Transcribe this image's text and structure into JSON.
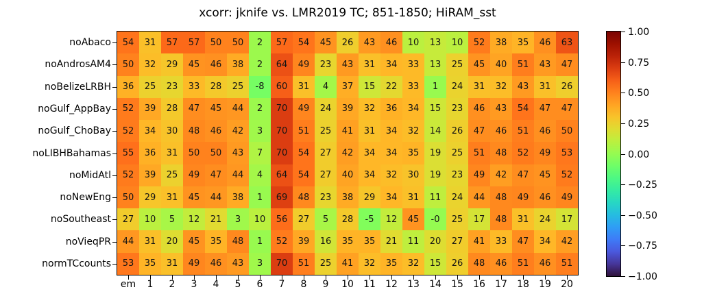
{
  "chart_data": {
    "type": "heatmap",
    "title": "xcorr: jknife vs. LMR2019 TC; 851-1850; HiRAM_sst",
    "x_tick_labels": [
      "em",
      "1",
      "2",
      "3",
      "4",
      "5",
      "6",
      "7",
      "8",
      "9",
      "10",
      "11",
      "12",
      "13",
      "14",
      "15",
      "16",
      "17",
      "18",
      "19",
      "20"
    ],
    "y_tick_labels": [
      "noAbaco",
      "noAndrosAM4",
      "noBelizeLRBH",
      "noGulf_AppBay",
      "noGulf_ChoBay",
      "noLIBHBahamas",
      "noMidAtl",
      "noNewEng",
      "noSoutheast",
      "noVieqPR",
      "normTCcounts"
    ],
    "cell_labels": [
      [
        "54",
        "31",
        "57",
        "57",
        "50",
        "50",
        "2",
        "57",
        "54",
        "45",
        "26",
        "43",
        "46",
        "10",
        "13",
        "10",
        "52",
        "38",
        "35",
        "46",
        "63"
      ],
      [
        "50",
        "32",
        "29",
        "45",
        "46",
        "38",
        "2",
        "64",
        "49",
        "23",
        "43",
        "31",
        "34",
        "33",
        "13",
        "25",
        "45",
        "40",
        "51",
        "43",
        "47"
      ],
      [
        "36",
        "25",
        "23",
        "33",
        "28",
        "25",
        "-8",
        "60",
        "31",
        "4",
        "37",
        "15",
        "22",
        "33",
        "1",
        "24",
        "31",
        "32",
        "43",
        "31",
        "26"
      ],
      [
        "52",
        "39",
        "28",
        "47",
        "45",
        "44",
        "2",
        "70",
        "49",
        "24",
        "39",
        "32",
        "36",
        "34",
        "15",
        "23",
        "46",
        "43",
        "54",
        "47",
        "47"
      ],
      [
        "52",
        "34",
        "30",
        "48",
        "46",
        "42",
        "3",
        "70",
        "51",
        "25",
        "41",
        "31",
        "34",
        "32",
        "14",
        "26",
        "47",
        "46",
        "51",
        "46",
        "50"
      ],
      [
        "55",
        "36",
        "31",
        "50",
        "50",
        "43",
        "7",
        "70",
        "54",
        "27",
        "42",
        "34",
        "34",
        "35",
        "19",
        "25",
        "51",
        "48",
        "52",
        "49",
        "53"
      ],
      [
        "52",
        "39",
        "25",
        "49",
        "47",
        "44",
        "4",
        "64",
        "54",
        "27",
        "40",
        "34",
        "32",
        "30",
        "19",
        "23",
        "49",
        "42",
        "47",
        "45",
        "52"
      ],
      [
        "50",
        "29",
        "31",
        "45",
        "44",
        "38",
        "1",
        "69",
        "48",
        "23",
        "38",
        "29",
        "34",
        "31",
        "11",
        "24",
        "44",
        "48",
        "49",
        "46",
        "49"
      ],
      [
        "27",
        "10",
        "5",
        "12",
        "21",
        "3",
        "10",
        "56",
        "27",
        "5",
        "28",
        "-5",
        "12",
        "45",
        "-0",
        "25",
        "17",
        "48",
        "31",
        "24",
        "17"
      ],
      [
        "44",
        "31",
        "20",
        "45",
        "35",
        "48",
        "1",
        "52",
        "39",
        "16",
        "35",
        "35",
        "21",
        "11",
        "20",
        "27",
        "41",
        "33",
        "47",
        "34",
        "42"
      ],
      [
        "53",
        "35",
        "31",
        "49",
        "46",
        "43",
        "3",
        "70",
        "51",
        "25",
        "41",
        "32",
        "35",
        "32",
        "15",
        "26",
        "48",
        "46",
        "51",
        "46",
        "51"
      ]
    ],
    "cell_value_note": "cell numbers are correlation values multiplied by 100",
    "colormap": "turbo",
    "vmin": -1,
    "vmax": 1,
    "colorbar": {
      "position": "right",
      "tick_labels": [
        "1.00",
        "0.75",
        "0.50",
        "0.25",
        "0.00",
        "−0.25",
        "−0.50",
        "−0.75",
        "−1.00"
      ],
      "top_color": "#7a0403",
      "bottom_color": "#30123b"
    },
    "annotation_color": "#141414",
    "grid": false,
    "legend": null
  }
}
